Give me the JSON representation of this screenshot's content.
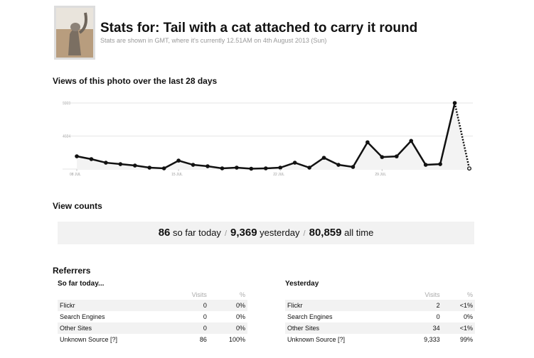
{
  "header": {
    "title": "Stats for: Tail with a cat attached to carry it round",
    "subtitle": "Stats are shown in GMT, where it's currently 12.51AM on 4th August 2013 (Sun)"
  },
  "chart_data": {
    "type": "line",
    "title": "Views of this photo over the last 28 days",
    "categories": [
      "08 JUL",
      null,
      null,
      null,
      null,
      null,
      null,
      "15 JUL",
      null,
      null,
      null,
      null,
      null,
      null,
      "22 JUL",
      null,
      null,
      null,
      null,
      null,
      null,
      "29 JUL",
      null,
      null,
      null,
      null,
      null,
      null
    ],
    "values": [
      1810,
      1410,
      900,
      700,
      500,
      200,
      100,
      1200,
      600,
      400,
      100,
      200,
      50,
      100,
      200,
      900,
      200,
      1600,
      600,
      300,
      3800,
      1700,
      1800,
      4000,
      600,
      700,
      9369,
      86
    ],
    "color": "#111111",
    "ylim": [
      0,
      9369
    ],
    "yticks": [
      4684,
      9369
    ],
    "grid": true
  },
  "view_counts": {
    "title": "View counts",
    "separator": "/",
    "items": [
      {
        "value": "86",
        "label": "so far today"
      },
      {
        "value": "9,369",
        "label": "yesterday"
      },
      {
        "value": "80,859",
        "label": "all time"
      }
    ]
  },
  "referrers": {
    "title": "Referrers",
    "tables": [
      {
        "title": "So far today...",
        "columns": [
          "Visits",
          "%"
        ],
        "rows": [
          [
            "Flickr",
            "0",
            "0%"
          ],
          [
            "Search Engines",
            "0",
            "0%"
          ],
          [
            "Other Sites",
            "0",
            "0%"
          ],
          [
            "Unknown Source [?]",
            "86",
            "100%"
          ]
        ]
      },
      {
        "title": "Yesterday",
        "columns": [
          "Visits",
          "%"
        ],
        "rows": [
          [
            "Flickr",
            "2",
            "<1%"
          ],
          [
            "Search Engines",
            "0",
            "0%"
          ],
          [
            "Other Sites",
            "34",
            "<1%"
          ],
          [
            "Unknown Source [?]",
            "9,333",
            "99%"
          ]
        ]
      }
    ]
  }
}
